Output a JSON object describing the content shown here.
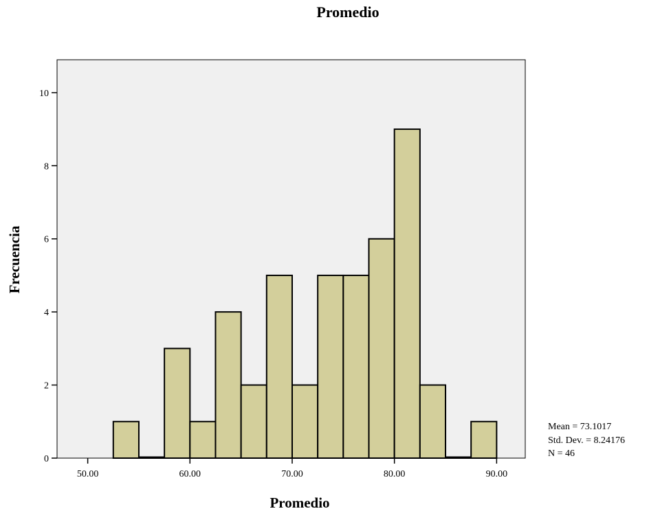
{
  "chart_data": {
    "type": "bar",
    "title": "Promedio",
    "xlabel": "Promedio",
    "ylabel": "Frecuencia",
    "bin_width": 2.5,
    "bins": [
      {
        "start": 52.5,
        "end": 55.0,
        "count": 1
      },
      {
        "start": 55.0,
        "end": 57.5,
        "count": 0
      },
      {
        "start": 57.5,
        "end": 60.0,
        "count": 3
      },
      {
        "start": 60.0,
        "end": 62.5,
        "count": 1
      },
      {
        "start": 62.5,
        "end": 65.0,
        "count": 4
      },
      {
        "start": 65.0,
        "end": 67.5,
        "count": 2
      },
      {
        "start": 67.5,
        "end": 70.0,
        "count": 5
      },
      {
        "start": 70.0,
        "end": 72.5,
        "count": 2
      },
      {
        "start": 72.5,
        "end": 75.0,
        "count": 5
      },
      {
        "start": 75.0,
        "end": 77.5,
        "count": 5
      },
      {
        "start": 77.5,
        "end": 80.0,
        "count": 6
      },
      {
        "start": 80.0,
        "end": 82.5,
        "count": 9
      },
      {
        "start": 82.5,
        "end": 85.0,
        "count": 2
      },
      {
        "start": 85.0,
        "end": 87.5,
        "count": 0
      },
      {
        "start": 87.5,
        "end": 90.0,
        "count": 1
      }
    ],
    "xlim": [
      47.0,
      92.8
    ],
    "ylim": [
      0,
      10.9
    ],
    "x_ticks": [
      50,
      60,
      70,
      80,
      90
    ],
    "x_tick_labels": [
      "50.00",
      "60.00",
      "70.00",
      "80.00",
      "90.00"
    ],
    "y_ticks": [
      0,
      2,
      4,
      6,
      8,
      10
    ],
    "y_tick_labels": [
      "0",
      "2",
      "4",
      "6",
      "8",
      "10"
    ],
    "grid": false,
    "stats": {
      "mean": "Mean = 73.1017",
      "std_dev": "Std. Dev. = 8.24176",
      "n": "N = 46"
    }
  },
  "colors": {
    "bar_fill": "#d3cf9b",
    "plot_background": "#f0f0f0",
    "outline": "#000000"
  }
}
